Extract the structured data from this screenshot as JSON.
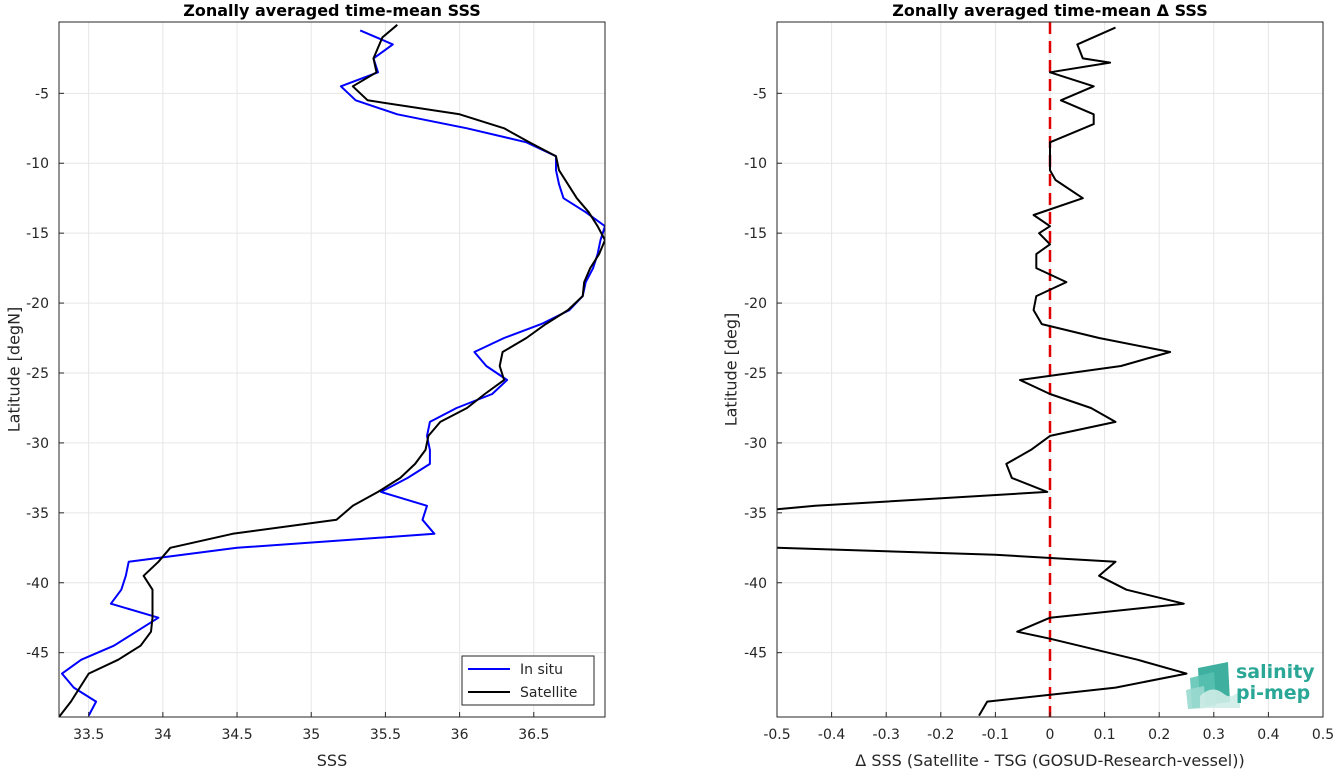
{
  "chart_data": [
    {
      "type": "line",
      "title": "Zonally averaged time-mean SSS",
      "xlabel": "SSS",
      "ylabel": "Latitude [degN]",
      "xlim": [
        33.3,
        36.98
      ],
      "ylim": [
        -49.6,
        0.1
      ],
      "xticks": [
        33.5,
        34,
        34.5,
        35,
        35.5,
        36,
        36.5
      ],
      "yticks": [
        -5,
        -10,
        -15,
        -20,
        -25,
        -30,
        -35,
        -40,
        -45
      ],
      "grid": true,
      "legend_position": "bottom-right",
      "series": [
        {
          "name": "In situ",
          "color": "#0000ff",
          "points": [
            [
              35.33,
              -0.5
            ],
            [
              35.55,
              -1.5
            ],
            [
              35.42,
              -2.5
            ],
            [
              35.45,
              -3.5
            ],
            [
              35.2,
              -4.5
            ],
            [
              35.3,
              -5.5
            ],
            [
              35.58,
              -6.5
            ],
            [
              36.05,
              -7.5
            ],
            [
              36.45,
              -8.5
            ],
            [
              36.65,
              -9.5
            ],
            [
              36.65,
              -10.5
            ],
            [
              36.67,
              -11.5
            ],
            [
              36.7,
              -12.5
            ],
            [
              36.85,
              -13.5
            ],
            [
              36.98,
              -14.5
            ],
            [
              36.95,
              -15.5
            ],
            [
              36.93,
              -16.5
            ],
            [
              36.9,
              -17.5
            ],
            [
              36.85,
              -18.5
            ],
            [
              36.83,
              -19.5
            ],
            [
              36.74,
              -20.5
            ],
            [
              36.55,
              -21.5
            ],
            [
              36.3,
              -22.5
            ],
            [
              36.1,
              -23.5
            ],
            [
              36.18,
              -24.5
            ],
            [
              36.32,
              -25.5
            ],
            [
              36.22,
              -26.5
            ],
            [
              35.98,
              -27.5
            ],
            [
              35.8,
              -28.5
            ],
            [
              35.78,
              -29.5
            ],
            [
              35.8,
              -30.5
            ],
            [
              35.8,
              -31.5
            ],
            [
              35.65,
              -32.5
            ],
            [
              35.47,
              -33.5
            ],
            [
              35.78,
              -34.5
            ],
            [
              35.75,
              -35.5
            ],
            [
              35.83,
              -36.5
            ],
            [
              34.5,
              -37.5
            ],
            [
              33.77,
              -38.5
            ],
            [
              33.75,
              -39.5
            ],
            [
              33.72,
              -40.5
            ],
            [
              33.65,
              -41.5
            ],
            [
              33.97,
              -42.5
            ],
            [
              33.82,
              -43.5
            ],
            [
              33.67,
              -44.5
            ],
            [
              33.45,
              -45.5
            ],
            [
              33.32,
              -46.5
            ],
            [
              33.4,
              -47.5
            ],
            [
              33.55,
              -48.5
            ],
            [
              33.5,
              -49.5
            ]
          ]
        },
        {
          "name": "Satellite",
          "color": "#000000",
          "points": [
            [
              35.58,
              -0.1
            ],
            [
              35.48,
              -1
            ],
            [
              35.42,
              -2.5
            ],
            [
              35.44,
              -3.5
            ],
            [
              35.28,
              -4.5
            ],
            [
              35.38,
              -5.5
            ],
            [
              36.0,
              -6.5
            ],
            [
              36.3,
              -7.5
            ],
            [
              36.47,
              -8.5
            ],
            [
              36.65,
              -9.5
            ],
            [
              36.67,
              -10.5
            ],
            [
              36.73,
              -11.5
            ],
            [
              36.79,
              -12.5
            ],
            [
              36.87,
              -13.5
            ],
            [
              36.93,
              -14.5
            ],
            [
              36.98,
              -15.5
            ],
            [
              36.94,
              -16.5
            ],
            [
              36.88,
              -17.5
            ],
            [
              36.84,
              -18.5
            ],
            [
              36.83,
              -19.5
            ],
            [
              36.73,
              -20.5
            ],
            [
              36.58,
              -21.5
            ],
            [
              36.45,
              -22.5
            ],
            [
              36.29,
              -23.5
            ],
            [
              36.27,
              -24.5
            ],
            [
              36.3,
              -25.5
            ],
            [
              36.17,
              -26.5
            ],
            [
              36.05,
              -27.5
            ],
            [
              35.87,
              -28.5
            ],
            [
              35.79,
              -29.5
            ],
            [
              35.77,
              -30.5
            ],
            [
              35.7,
              -31.5
            ],
            [
              35.6,
              -32.5
            ],
            [
              35.45,
              -33.5
            ],
            [
              35.28,
              -34.5
            ],
            [
              35.17,
              -35.5
            ],
            [
              34.47,
              -36.5
            ],
            [
              34.05,
              -37.5
            ],
            [
              33.97,
              -38.5
            ],
            [
              33.87,
              -39.5
            ],
            [
              33.93,
              -40.5
            ],
            [
              33.93,
              -41.5
            ],
            [
              33.93,
              -42.5
            ],
            [
              33.92,
              -43.5
            ],
            [
              33.85,
              -44.5
            ],
            [
              33.7,
              -45.5
            ],
            [
              33.5,
              -46.5
            ],
            [
              33.44,
              -47.5
            ],
            [
              33.38,
              -48.5
            ],
            [
              33.3,
              -49.6
            ]
          ]
        }
      ]
    },
    {
      "type": "line",
      "title": "Zonally averaged time-mean Δ SSS",
      "xlabel": "Δ SSS (Satellite - TSG (GOSUD-Research-vessel))",
      "ylabel": "Latitude [deg]",
      "xlim": [
        -0.5,
        0.5
      ],
      "ylim": [
        -49.6,
        0.1
      ],
      "xticks": [
        -0.5,
        -0.4,
        -0.3,
        -0.2,
        -0.1,
        0,
        0.1,
        0.2,
        0.3,
        0.4,
        0.5
      ],
      "xtick_labels": [
        "-0.5",
        "-0.4",
        "-0.3",
        "-0.2",
        "-0.1",
        "0",
        "0.1",
        "0.2",
        "0.3",
        "0.4",
        "0.5"
      ],
      "yticks": [
        -5,
        -10,
        -15,
        -20,
        -25,
        -30,
        -35,
        -40,
        -45
      ],
      "grid": true,
      "zero_line": {
        "x": 0,
        "color": "#e00000",
        "style": "dashed"
      },
      "series": [
        {
          "name": "",
          "color": "#000000",
          "points": [
            [
              0.12,
              -0.3
            ],
            [
              0.05,
              -1.5
            ],
            [
              0.06,
              -2.5
            ],
            [
              0.11,
              -2.8
            ],
            [
              0.0,
              -3.5
            ],
            [
              0.08,
              -4.5
            ],
            [
              0.02,
              -5.5
            ],
            [
              0.08,
              -6.5
            ],
            [
              0.08,
              -7.2
            ],
            [
              0.0,
              -8.5
            ],
            [
              0.0,
              -9.5
            ],
            [
              0.0,
              -10.5
            ],
            [
              0.01,
              -11.2
            ],
            [
              0.06,
              -12.5
            ],
            [
              -0.03,
              -13.7
            ],
            [
              0.0,
              -14.5
            ],
            [
              -0.02,
              -15
            ],
            [
              0.0,
              -15.8
            ],
            [
              -0.025,
              -16.5
            ],
            [
              -0.025,
              -17.5
            ],
            [
              0.03,
              -18.5
            ],
            [
              -0.025,
              -19.5
            ],
            [
              -0.03,
              -20.5
            ],
            [
              -0.015,
              -21.5
            ],
            [
              0.09,
              -22.5
            ],
            [
              0.22,
              -23.5
            ],
            [
              0.13,
              -24.5
            ],
            [
              -0.055,
              -25.5
            ],
            [
              0.0,
              -26.5
            ],
            [
              0.075,
              -27.5
            ],
            [
              0.12,
              -28.5
            ],
            [
              0.0,
              -29.5
            ],
            [
              -0.035,
              -30.5
            ],
            [
              -0.08,
              -31.5
            ],
            [
              -0.07,
              -32.5
            ],
            [
              -0.005,
              -33.5
            ],
            [
              -0.43,
              -34.5
            ],
            [
              -0.5,
              -34.75
            ]
          ]
        },
        {
          "name": "",
          "color": "#000000",
          "points": [
            [
              -0.5,
              -37.5
            ],
            [
              -0.1,
              -38
            ],
            [
              0.12,
              -38.5
            ],
            [
              0.09,
              -39.5
            ],
            [
              0.14,
              -40.5
            ],
            [
              0.245,
              -41.5
            ],
            [
              0.0,
              -42.5
            ],
            [
              -0.06,
              -43.5
            ],
            [
              0.0,
              -44
            ],
            [
              0.16,
              -45.5
            ],
            [
              0.25,
              -46.5
            ],
            [
              0.12,
              -47.5
            ],
            [
              -0.115,
              -48.5
            ],
            [
              -0.13,
              -49.5
            ]
          ]
        }
      ]
    }
  ],
  "legend": {
    "items": [
      {
        "label": "In situ",
        "color": "#0000ff"
      },
      {
        "label": "Satellite",
        "color": "#000000"
      }
    ]
  },
  "logo": {
    "line1": "salinity",
    "line2": "pi-mep",
    "color": "#2aa796"
  }
}
